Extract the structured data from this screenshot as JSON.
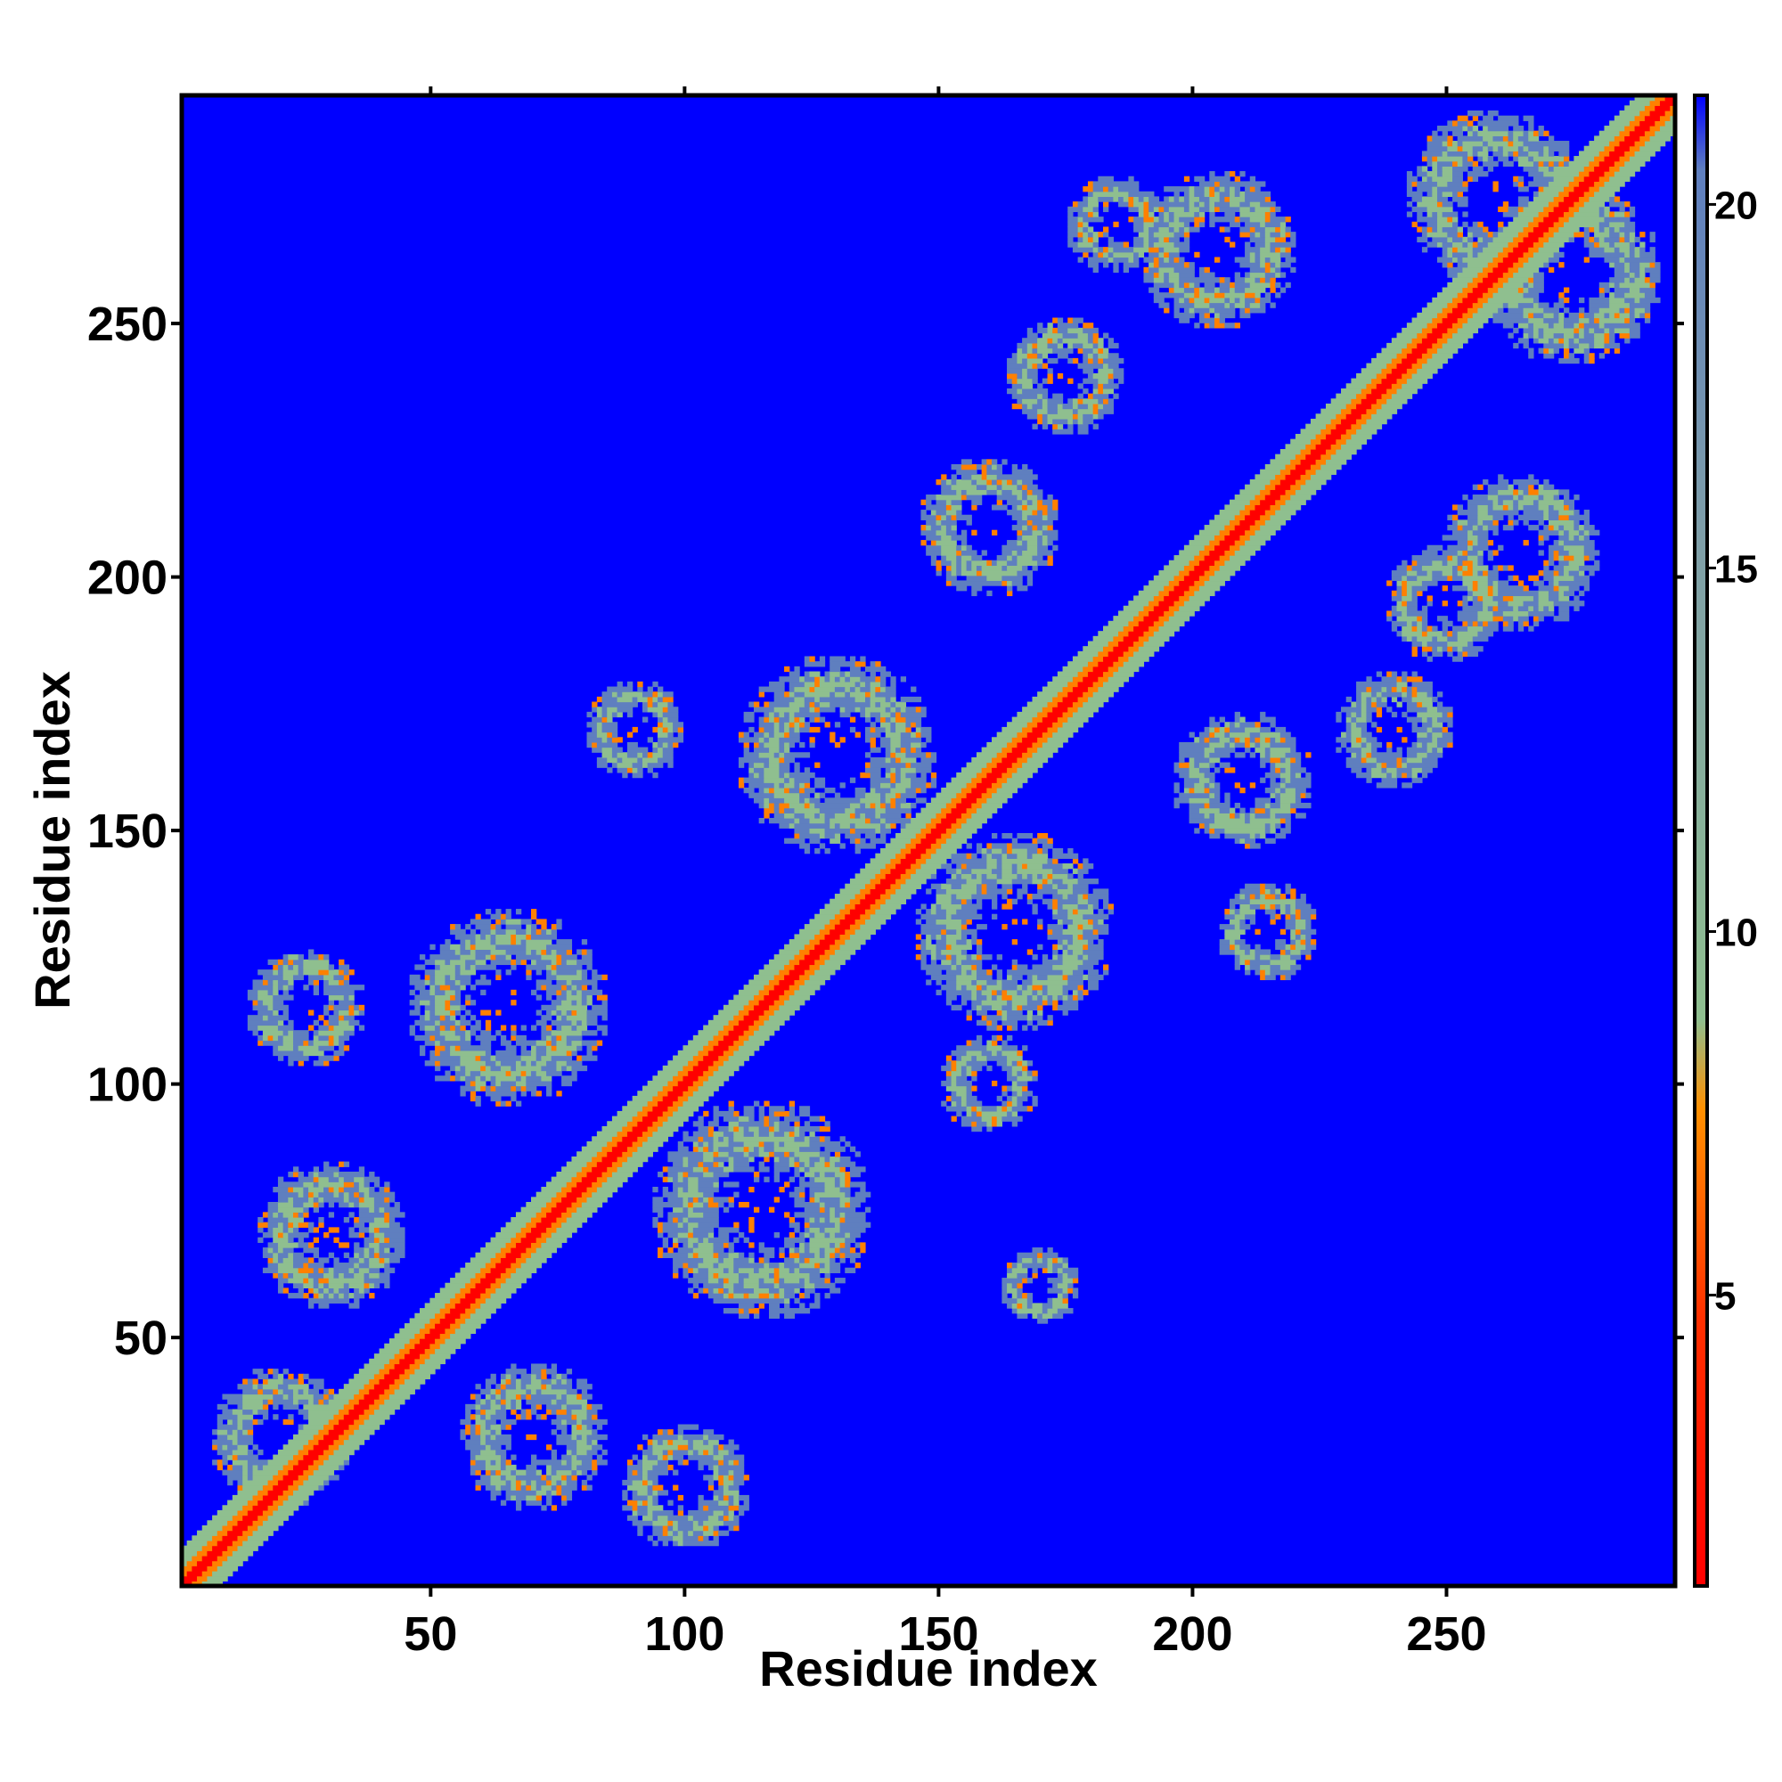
{
  "chart_data": {
    "type": "heatmap",
    "title": "",
    "xlabel": "Residue index",
    "ylabel": "Residue index",
    "xlim": [
      1,
      295
    ],
    "ylim": [
      1,
      295
    ],
    "xticks": [
      50,
      100,
      150,
      200,
      250
    ],
    "yticks": [
      50,
      100,
      150,
      200,
      250
    ],
    "xtick_labels": [
      "50",
      "100",
      "150",
      "200",
      "250"
    ],
    "ytick_labels": [
      "50",
      "100",
      "150",
      "200",
      "250"
    ],
    "colorbar": {
      "range": [
        1,
        21.5
      ],
      "ticks": [
        5,
        10,
        15,
        20
      ],
      "tick_labels": [
        "5",
        "10",
        "15",
        "20"
      ],
      "placement": "right"
    },
    "colors": {
      "background": "#0000ff",
      "near": "#ff0000",
      "close": "#ff8000",
      "mid": "#8fbf8f",
      "far": "#5f7fbf"
    },
    "cell_value_default": 21,
    "diagonal": {
      "core_value": 2,
      "inner_value": 5,
      "band_value": 10
    },
    "contact_blobs": [
      {
        "x": 20,
        "y": 30,
        "extent": 14
      },
      {
        "x": 30,
        "y": 70,
        "extent": 15
      },
      {
        "x": 70,
        "y": 30,
        "extent": 15
      },
      {
        "x": 100,
        "y": 20,
        "extent": 13
      },
      {
        "x": 65,
        "y": 115,
        "extent": 20
      },
      {
        "x": 115,
        "y": 75,
        "extent": 22
      },
      {
        "x": 130,
        "y": 165,
        "extent": 20
      },
      {
        "x": 165,
        "y": 130,
        "extent": 20
      },
      {
        "x": 160,
        "y": 210,
        "extent": 14
      },
      {
        "x": 210,
        "y": 160,
        "extent": 14
      },
      {
        "x": 175,
        "y": 240,
        "extent": 12
      },
      {
        "x": 205,
        "y": 265,
        "extent": 16
      },
      {
        "x": 265,
        "y": 205,
        "extent": 16
      },
      {
        "x": 260,
        "y": 275,
        "extent": 18
      },
      {
        "x": 275,
        "y": 260,
        "extent": 18
      },
      {
        "x": 240,
        "y": 170,
        "extent": 12
      },
      {
        "x": 250,
        "y": 195,
        "extent": 12
      },
      {
        "x": 25,
        "y": 115,
        "extent": 12
      },
      {
        "x": 160,
        "y": 100,
        "extent": 10
      },
      {
        "x": 185,
        "y": 270,
        "extent": 10
      },
      {
        "x": 215,
        "y": 130,
        "extent": 10
      },
      {
        "x": 90,
        "y": 170,
        "extent": 10
      },
      {
        "x": 170,
        "y": 60,
        "extent": 8
      }
    ]
  }
}
